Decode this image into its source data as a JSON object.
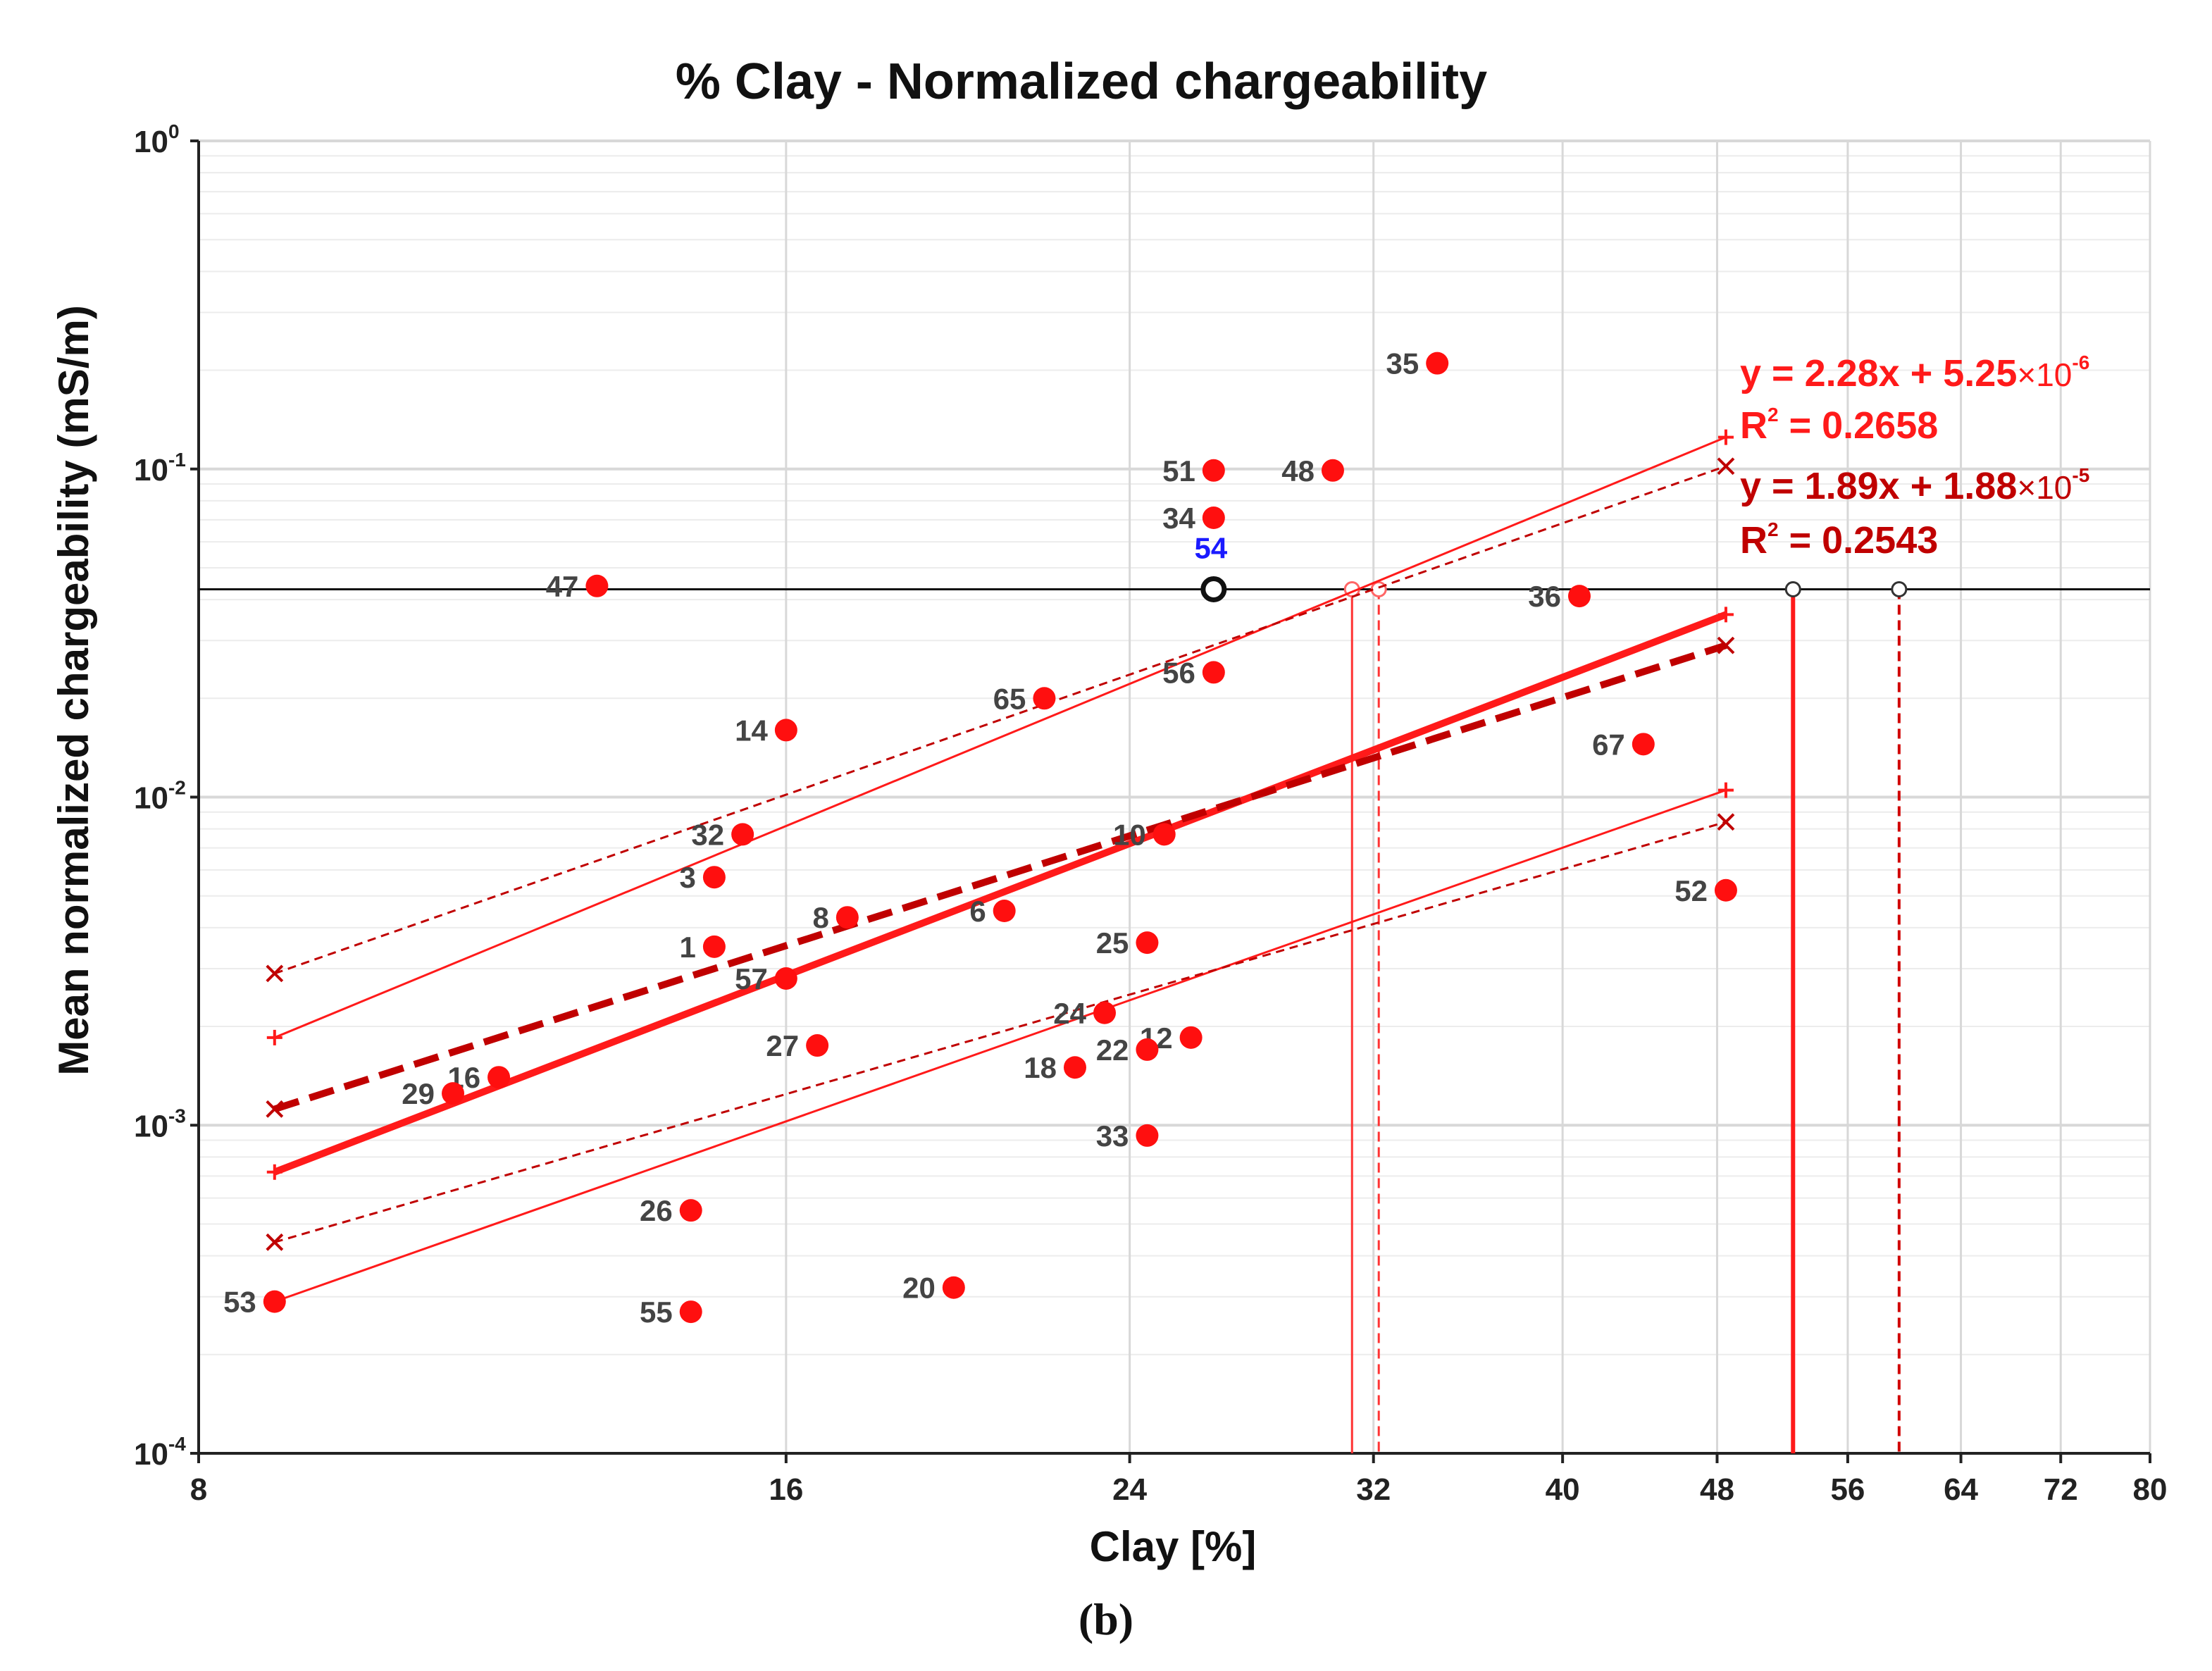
{
  "chart_data": {
    "type": "scatter",
    "title": "% Clay - Normalized chargeability",
    "xlabel": "Clay [%]",
    "ylabel": "Mean normalized chargeability (mS/m)",
    "caption": "(b)",
    "xscale": "log",
    "yscale": "log",
    "xlim": [
      8,
      80
    ],
    "ylim": [
      0.0001,
      1
    ],
    "grid": true,
    "x_ticks": [
      8,
      16,
      24,
      32,
      40,
      48,
      56,
      64,
      72,
      80
    ],
    "y_ticks": [
      {
        "value": 0.0001,
        "base": "10",
        "exp": "-4"
      },
      {
        "value": 0.001,
        "base": "10",
        "exp": "-3"
      },
      {
        "value": 0.01,
        "base": "10",
        "exp": "-2"
      },
      {
        "value": 0.1,
        "base": "10",
        "exp": "-1"
      },
      {
        "value": 1,
        "base": "10",
        "exp": "0"
      }
    ],
    "points": [
      {
        "label": "35",
        "x": 34.5,
        "y": 0.21,
        "side": "left"
      },
      {
        "label": "51",
        "x": 26.5,
        "y": 0.099,
        "side": "left"
      },
      {
        "label": "48",
        "x": 30.5,
        "y": 0.099,
        "side": "left"
      },
      {
        "label": "34",
        "x": 26.5,
        "y": 0.071,
        "side": "left"
      },
      {
        "label": "47",
        "x": 12.8,
        "y": 0.044,
        "side": "left"
      },
      {
        "label": "36",
        "x": 40.8,
        "y": 0.041,
        "side": "left"
      },
      {
        "label": "56",
        "x": 26.5,
        "y": 0.024,
        "side": "left"
      },
      {
        "label": "65",
        "x": 21.7,
        "y": 0.02,
        "side": "left"
      },
      {
        "label": "14",
        "x": 16.0,
        "y": 0.016,
        "side": "left"
      },
      {
        "label": "67",
        "x": 44.0,
        "y": 0.0145,
        "side": "left"
      },
      {
        "label": "32",
        "x": 15.2,
        "y": 0.0077,
        "side": "left"
      },
      {
        "label": "10",
        "x": 25.0,
        "y": 0.0077,
        "side": "left"
      },
      {
        "label": "3",
        "x": 14.7,
        "y": 0.0057,
        "side": "left"
      },
      {
        "label": "52",
        "x": 48.5,
        "y": 0.0052,
        "side": "left"
      },
      {
        "label": "6",
        "x": 20.7,
        "y": 0.0045,
        "side": "left"
      },
      {
        "label": "8",
        "x": 17.2,
        "y": 0.0043,
        "side": "left"
      },
      {
        "label": "25",
        "x": 24.5,
        "y": 0.0036,
        "side": "left"
      },
      {
        "label": "1",
        "x": 14.7,
        "y": 0.0035,
        "side": "left"
      },
      {
        "label": "57",
        "x": 16.0,
        "y": 0.0028,
        "side": "left"
      },
      {
        "label": "24",
        "x": 23.3,
        "y": 0.0022,
        "side": "left"
      },
      {
        "label": "12",
        "x": 25.8,
        "y": 0.00185,
        "side": "left"
      },
      {
        "label": "27",
        "x": 16.6,
        "y": 0.00175,
        "side": "left"
      },
      {
        "label": "22",
        "x": 24.5,
        "y": 0.0017,
        "side": "left"
      },
      {
        "label": "18",
        "x": 22.5,
        "y": 0.0015,
        "side": "left"
      },
      {
        "label": "16",
        "x": 11.4,
        "y": 0.0014,
        "side": "left"
      },
      {
        "label": "29",
        "x": 10.8,
        "y": 0.00125,
        "side": "left"
      },
      {
        "label": "33",
        "x": 24.5,
        "y": 0.00093,
        "side": "left"
      },
      {
        "label": "26",
        "x": 14.3,
        "y": 0.00055,
        "side": "left"
      },
      {
        "label": "20",
        "x": 19.5,
        "y": 0.00032,
        "side": "left"
      },
      {
        "label": "53",
        "x": 8.75,
        "y": 0.00029,
        "side": "left"
      },
      {
        "label": "55",
        "x": 14.3,
        "y": 0.00027,
        "side": "left"
      }
    ],
    "reference_point": {
      "label": "54",
      "x": 26.5,
      "y": 0.043
    },
    "reference_level": 0.043,
    "intersections": [
      {
        "x": 31.2,
        "style": "solid"
      },
      {
        "x": 32.2,
        "style": "dashed"
      },
      {
        "x": 52.5,
        "style": "solid"
      },
      {
        "x": 59.5,
        "style": "dashed"
      }
    ],
    "series": [
      {
        "name": "fit1",
        "x": [
          8.75,
          48.5
        ],
        "y": [
          0.00072,
          0.036
        ],
        "style": "solid",
        "weight": "bold",
        "marker": "plus",
        "color": "#ff1a1a"
      },
      {
        "name": "fit2",
        "x": [
          8.75,
          48.5
        ],
        "y": [
          0.00112,
          0.029
        ],
        "style": "dashed",
        "weight": "bold",
        "marker": "x",
        "color": "#c00000"
      },
      {
        "name": "fit1-upper",
        "x": [
          8.75,
          48.5
        ],
        "y": [
          0.00185,
          0.125
        ],
        "style": "solid",
        "weight": "thin",
        "marker": "plus",
        "color": "#ff1a1a"
      },
      {
        "name": "fit1-lower",
        "x": [
          8.75,
          48.5
        ],
        "y": [
          0.00029,
          0.0105
        ],
        "style": "solid",
        "weight": "thin",
        "marker": "plus",
        "color": "#ff1a1a"
      },
      {
        "name": "fit2-upper",
        "x": [
          8.75,
          48.5
        ],
        "y": [
          0.0029,
          0.102
        ],
        "style": "dashed",
        "weight": "thin",
        "marker": "x",
        "color": "#c00000"
      },
      {
        "name": "fit2-lower",
        "x": [
          8.75,
          48.5
        ],
        "y": [
          0.00044,
          0.0084
        ],
        "style": "dashed",
        "weight": "thin",
        "marker": "x",
        "color": "#c00000"
      }
    ],
    "annotations": {
      "eq1_main": "y = 2.28x + 5.25",
      "eq1_times": "×10",
      "eq1_exp": "-6",
      "r2_1_label": "R",
      "r2_1_sup": "2",
      "r2_1_value": " = 0.2658",
      "eq2_main": "y = 1.89x + 1.88",
      "eq2_times": "×10",
      "eq2_exp": "-5",
      "r2_2_label": "R",
      "r2_2_sup": "2",
      "r2_2_value": " = 0.2543",
      "eq1_color": "#ff1a1a",
      "eq2_color": "#c00000"
    },
    "colors": {
      "point": "#ff0f0f",
      "reference": "#111111",
      "reference_label": "#1a1aff",
      "grid": "#d8d8d8",
      "grid_minor": "#ececec"
    }
  }
}
